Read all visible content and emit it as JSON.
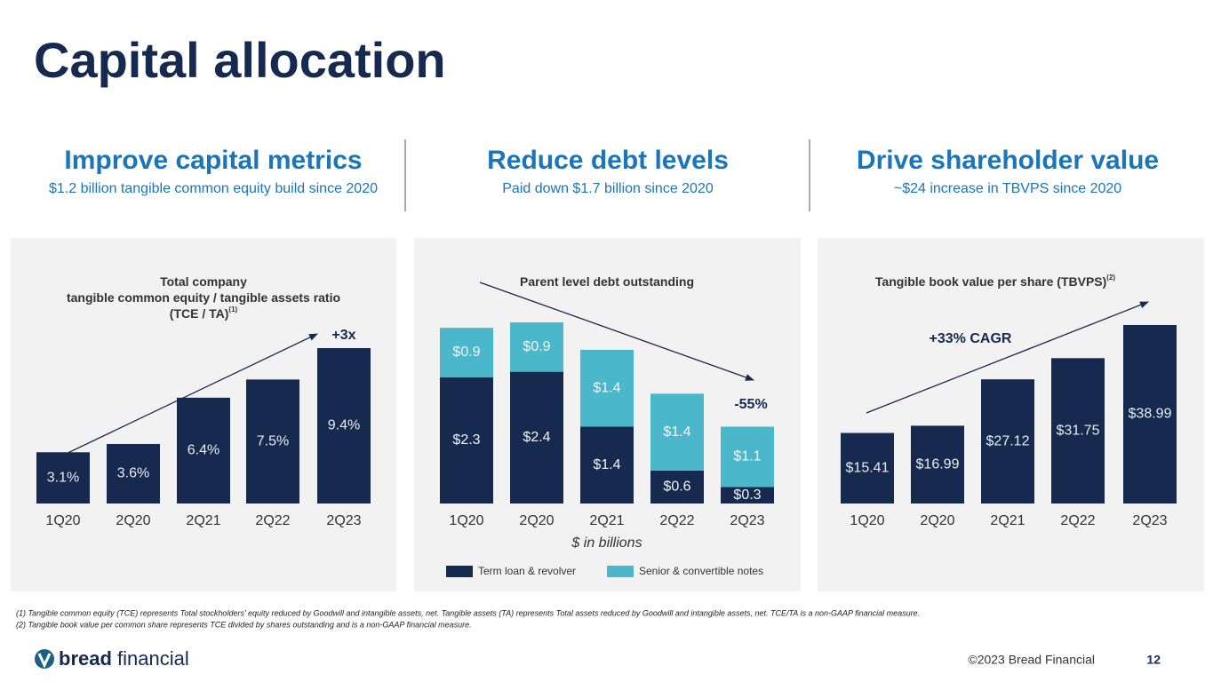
{
  "title": "Capital allocation",
  "columns": [
    {
      "heading": "Improve capital metrics",
      "subheading": "$1.2 billion tangible common equity build since 2020"
    },
    {
      "heading": "Reduce debt levels",
      "subheading": "Paid down $1.7 billion since 2020"
    },
    {
      "heading": "Drive shareholder value",
      "subheading": "~$24 increase in TBVPS since 2020"
    }
  ],
  "chart_data": [
    {
      "type": "bar",
      "title": [
        "Total company",
        "tangible common equity / tangible assets ratio",
        "(TCE / TA)"
      ],
      "title_note": "(1)",
      "categories": [
        "1Q20",
        "2Q20",
        "2Q21",
        "2Q22",
        "2Q23"
      ],
      "values": [
        3.1,
        3.6,
        6.4,
        7.5,
        9.4
      ],
      "value_labels": [
        "3.1%",
        "3.6%",
        "6.4%",
        "7.5%",
        "9.4%"
      ],
      "color": "#152a4e",
      "annotation": "+3x"
    },
    {
      "type": "stacked_bar",
      "title": [
        "Parent level debt outstanding"
      ],
      "categories": [
        "1Q20",
        "2Q20",
        "2Q21",
        "2Q22",
        "2Q23"
      ],
      "series": [
        {
          "name": "Term loan & revolver",
          "color": "#152a4e",
          "values": [
            2.3,
            2.4,
            1.4,
            0.6,
            0.3
          ],
          "value_labels": [
            "$2.3",
            "$2.4",
            "$1.4",
            "$0.6",
            "$0.3"
          ]
        },
        {
          "name": "Senior & convertible notes",
          "color": "#4bb7cb",
          "values": [
            0.9,
            0.9,
            1.4,
            1.4,
            1.1
          ],
          "value_labels": [
            "$0.9",
            "$0.9",
            "$1.4",
            "$1.4",
            "$1.1"
          ]
        }
      ],
      "xlabel": "$ in billions",
      "annotation": "-55%",
      "legend": "bottom"
    },
    {
      "type": "bar",
      "title": [
        "Tangible book value per share (TBVPS)"
      ],
      "title_note": "(2)",
      "categories": [
        "1Q20",
        "2Q20",
        "2Q21",
        "2Q22",
        "2Q23"
      ],
      "values": [
        15.41,
        16.99,
        27.12,
        31.75,
        38.99
      ],
      "value_labels": [
        "$15.41",
        "$16.99",
        "$27.12",
        "$31.75",
        "$38.99"
      ],
      "color": "#152a4e",
      "annotation": "+33% CAGR"
    }
  ],
  "footnotes": [
    "(1) Tangible common equity (TCE) represents Total stockholders’ equity reduced by Goodwill and intangible assets, net. Tangible assets (TA) represents Total assets reduced by Goodwill and intangible assets, net. TCE/TA is a non-GAAP financial measure.",
    "(2) Tangible book value per common share represents TCE divided by shares outstanding and is a non-GAAP financial measure."
  ],
  "footer": {
    "logo": [
      "bread",
      "financial"
    ],
    "copyright": "©2023 Bread Financial",
    "page": 12
  }
}
